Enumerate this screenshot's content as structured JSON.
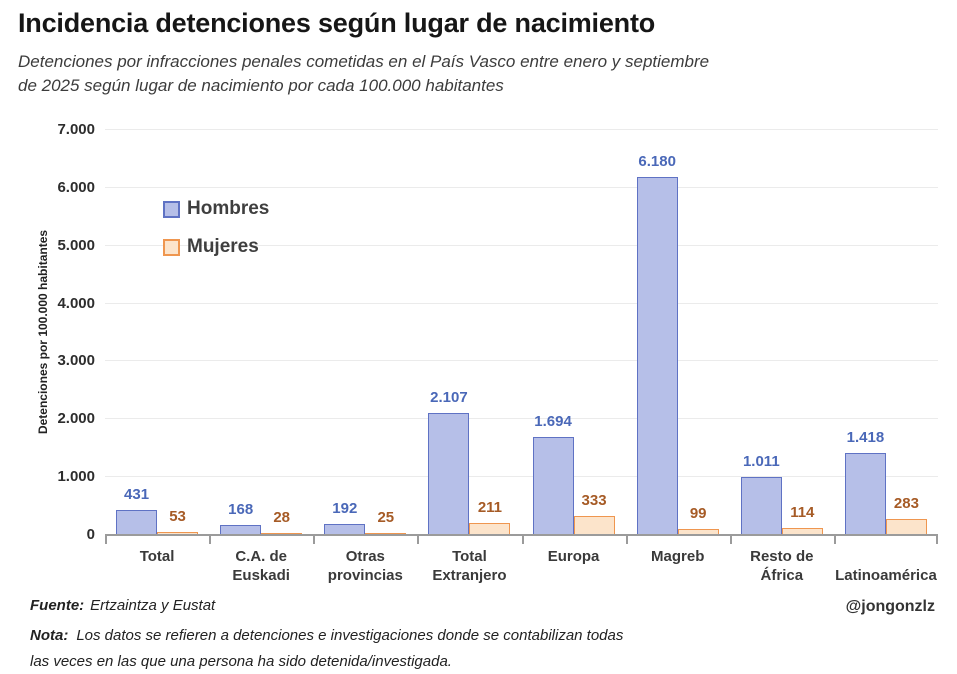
{
  "header": {
    "title": "Incidencia detenciones según lugar de nacimiento",
    "subtitle_lines": [
      "Detenciones por infracciones penales cometidas en el País Vasco entre enero y septiembre",
      "de 2025 según lugar de nacimiento por cada 100.000 habitantes"
    ]
  },
  "chart_data": {
    "type": "bar",
    "title": "Incidencia detenciones según lugar de nacimiento",
    "xlabel": "",
    "ylabel": "Detenciones por 100.000 habitantes",
    "ylim": [
      0,
      7000
    ],
    "grid": true,
    "legend_position": "upper-left-inside",
    "ytick_values": [
      0,
      1000,
      2000,
      3000,
      4000,
      5000,
      6000,
      7000
    ],
    "ytick_labels": [
      "0",
      "1.000",
      "2.000",
      "3.000",
      "4.000",
      "5.000",
      "6.000",
      "7.000"
    ],
    "categories": [
      "Total",
      "C.A. de Euskadi",
      "Otras provincias",
      "Total Extranjero",
      "Europa",
      "Magreb",
      "Resto de África",
      "Latinoamérica"
    ],
    "category_label_lines": [
      [
        "Total",
        ""
      ],
      [
        "C.A. de",
        "Euskadi"
      ],
      [
        "Otras",
        "provincias"
      ],
      [
        "Total",
        "Extranjero"
      ],
      [
        "Europa",
        ""
      ],
      [
        "Magreb",
        ""
      ],
      [
        "Resto de",
        "África"
      ],
      [
        "",
        "Latinoamérica"
      ]
    ],
    "series": [
      {
        "name": "Hombres",
        "values": [
          431,
          168,
          192,
          2107,
          1694,
          6180,
          1011,
          1418
        ],
        "labels": [
          "431",
          "168",
          "192",
          "2.107",
          "1.694",
          "6.180",
          "1.011",
          "1.418"
        ],
        "fill": "#b6bfe8",
        "border": "#5f72c4",
        "label_color": "#4a68b8"
      },
      {
        "name": "Mujeres",
        "values": [
          53,
          28,
          25,
          211,
          333,
          99,
          114,
          283
        ],
        "labels": [
          "53",
          "28",
          "25",
          "211",
          "333",
          "99",
          "114",
          "283"
        ],
        "fill": "#fce4cb",
        "border": "#ef964f",
        "label_color": "#a65b26"
      }
    ]
  },
  "footer": {
    "source_label": "Fuente:",
    "source_text": "Ertzaintza y Eustat",
    "handle": "@jongonzlz",
    "note_label": "Nota:",
    "note_lines": [
      "Los datos se refieren a detenciones e investigaciones donde se contabilizan todas",
      "las veces en las que una persona ha sido detenida/investigada."
    ]
  }
}
